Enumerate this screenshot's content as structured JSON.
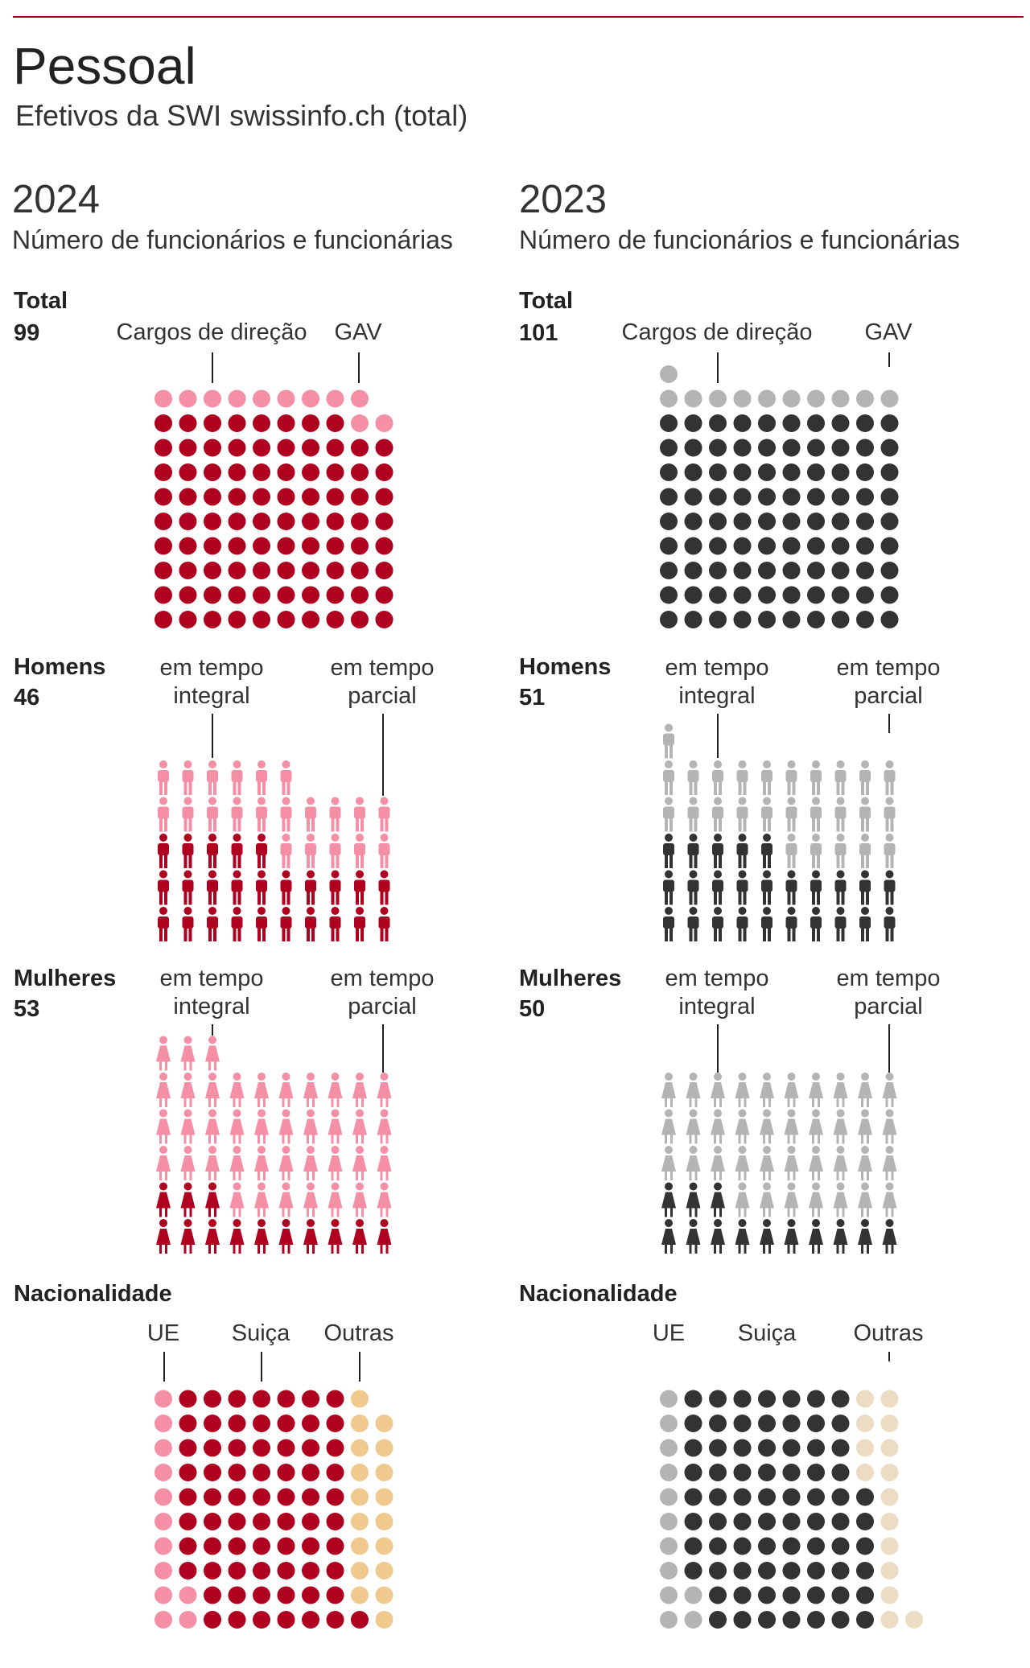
{
  "title": "Pessoal",
  "subtitle": "Efetivos da SWI swissinfo.ch (total)",
  "colors": {
    "dark_red": "#b00020",
    "pink": "#f48fa5",
    "beige_2024": "#f0c98e",
    "dark_gray": "#333333",
    "light_gray": "#b4b4b4",
    "beige_2023": "#ecdcc4",
    "accent_line": "#b30024"
  },
  "icons": {
    "dot": "circle",
    "man": "man-icon",
    "woman": "woman-icon"
  },
  "panels": [
    {
      "year": "2024",
      "caption": "Número de funcionários e funcionárias",
      "total": {
        "name": "Total",
        "count": "99",
        "label_a": "Cargos de direção",
        "label_b": "GAV"
      },
      "men": {
        "name": "Homens",
        "count": "46",
        "label_a": "em tempo\nintegral",
        "label_b": "em tempo\nparcial"
      },
      "women": {
        "name": "Mulheres",
        "count": "53",
        "label_a": "em tempo\nintegral",
        "label_b": "em tempo\nparcial"
      },
      "nationality": {
        "name": "Nacionalidade",
        "label_a": "UE",
        "label_b": "Suiça",
        "label_c": "Outras"
      }
    },
    {
      "year": "2023",
      "caption": "Número de funcionários e funcionárias",
      "total": {
        "name": "Total",
        "count": "101",
        "label_a": "Cargos de direção",
        "label_b": "GAV"
      },
      "men": {
        "name": "Homens",
        "count": "51",
        "label_a": "em tempo\nintegral",
        "label_b": "em tempo\nparcial"
      },
      "women": {
        "name": "Mulheres",
        "count": "50",
        "label_a": "em tempo\nintegral",
        "label_b": "em tempo\nparcial"
      },
      "nationality": {
        "name": "Nacionalidade",
        "label_a": "UE",
        "label_b": "Suiça",
        "label_c": "Outras"
      }
    }
  ],
  "chart_data": [
    {
      "type": "waffle",
      "year": "2024",
      "metric": "Total",
      "series": [
        {
          "name": "Cargos de direção",
          "values": [
            11
          ]
        },
        {
          "name": "GAV",
          "values": [
            88
          ]
        }
      ]
    },
    {
      "type": "waffle",
      "year": "2024",
      "metric": "Homens",
      "series": [
        {
          "name": "em tempo integral",
          "values": [
            25
          ]
        },
        {
          "name": "em tempo parcial",
          "values": [
            21
          ]
        }
      ]
    },
    {
      "type": "waffle",
      "year": "2024",
      "metric": "Mulheres",
      "series": [
        {
          "name": "em tempo integral",
          "values": [
            13
          ]
        },
        {
          "name": "em tempo parcial",
          "values": [
            40
          ]
        }
      ]
    },
    {
      "type": "waffle",
      "year": "2024",
      "metric": "Nacionalidade",
      "series": [
        {
          "name": "UE",
          "values": [
            12
          ]
        },
        {
          "name": "Suiça",
          "values": [
            69
          ]
        },
        {
          "name": "Outras",
          "values": [
            18
          ]
        }
      ]
    },
    {
      "type": "waffle",
      "year": "2023",
      "metric": "Total",
      "series": [
        {
          "name": "Cargos de direção",
          "values": [
            11
          ]
        },
        {
          "name": "GAV",
          "values": [
            90
          ]
        }
      ]
    },
    {
      "type": "waffle",
      "year": "2023",
      "metric": "Homens",
      "series": [
        {
          "name": "em tempo integral",
          "values": [
            25
          ]
        },
        {
          "name": "em tempo parcial",
          "values": [
            26
          ]
        }
      ]
    },
    {
      "type": "waffle",
      "year": "2023",
      "metric": "Mulheres",
      "series": [
        {
          "name": "em tempo integral",
          "values": [
            13
          ]
        },
        {
          "name": "em tempo parcial",
          "values": [
            37
          ]
        }
      ]
    },
    {
      "type": "waffle",
      "year": "2023",
      "metric": "Nacionalidade",
      "series": [
        {
          "name": "UE",
          "values": [
            12
          ]
        },
        {
          "name": "Suiça",
          "values": [
            74
          ]
        },
        {
          "name": "Outras",
          "values": [
            15
          ]
        }
      ]
    }
  ]
}
